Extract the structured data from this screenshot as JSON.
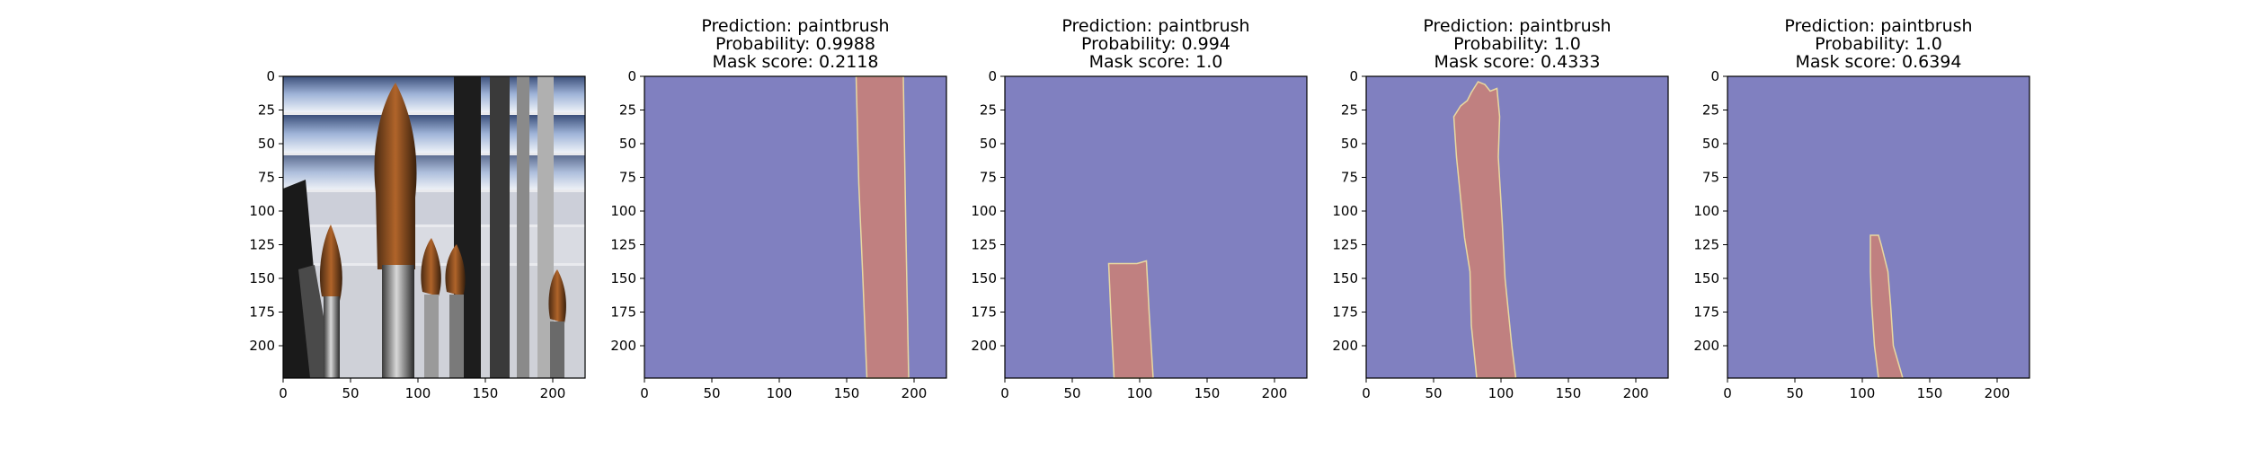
{
  "figure": {
    "background": "#ffffff",
    "mask_background_color": "#8080c0",
    "mask_foreground_color": "#c08080",
    "mask_edge_color": "#e8d8a0"
  },
  "chart_data": [
    {
      "type": "image",
      "panel": "input-photo",
      "content": "paintbrushes photo",
      "xlim": [
        0,
        224
      ],
      "ylim": [
        224,
        0
      ],
      "xticks": [
        0,
        50,
        100,
        150,
        200
      ],
      "yticks": [
        0,
        25,
        50,
        75,
        100,
        125,
        150,
        175,
        200
      ],
      "title_lines": []
    },
    {
      "type": "heatmap",
      "panel": "mask-1",
      "title_lines": [
        "Prediction: paintbrush",
        "Probability: 0.9988",
        "Mask score: 0.2118"
      ],
      "xlim": [
        0,
        224
      ],
      "ylim": [
        224,
        0
      ],
      "xticks": [
        0,
        50,
        100,
        150,
        200
      ],
      "yticks": [
        0,
        25,
        50,
        75,
        100,
        125,
        150,
        175,
        200
      ],
      "mask_polygon": [
        [
          157,
          0
        ],
        [
          192,
          0
        ],
        [
          193,
          60
        ],
        [
          194,
          120
        ],
        [
          196,
          224
        ],
        [
          165,
          224
        ],
        [
          162,
          150
        ],
        [
          159,
          80
        ]
      ]
    },
    {
      "type": "heatmap",
      "panel": "mask-2",
      "title_lines": [
        "Prediction: paintbrush",
        "Probability: 0.994",
        "Mask score: 1.0"
      ],
      "xlim": [
        0,
        224
      ],
      "ylim": [
        224,
        0
      ],
      "xticks": [
        0,
        50,
        100,
        150,
        200
      ],
      "yticks": [
        0,
        25,
        50,
        75,
        100,
        125,
        150,
        175,
        200
      ],
      "mask_polygon": [
        [
          77,
          139
        ],
        [
          98,
          139
        ],
        [
          105,
          137
        ],
        [
          107,
          175
        ],
        [
          110,
          224
        ],
        [
          81,
          224
        ],
        [
          79,
          185
        ]
      ]
    },
    {
      "type": "heatmap",
      "panel": "mask-3",
      "title_lines": [
        "Prediction: paintbrush",
        "Probability: 1.0",
        "Mask score: 0.4333"
      ],
      "xlim": [
        0,
        224
      ],
      "ylim": [
        224,
        0
      ],
      "xticks": [
        0,
        50,
        100,
        150,
        200
      ],
      "yticks": [
        0,
        25,
        50,
        75,
        100,
        125,
        150,
        175,
        200
      ],
      "mask_polygon": [
        [
          78,
          12
        ],
        [
          83,
          4
        ],
        [
          88,
          6
        ],
        [
          92,
          11
        ],
        [
          97,
          9
        ],
        [
          99,
          30
        ],
        [
          98,
          60
        ],
        [
          101,
          110
        ],
        [
          103,
          150
        ],
        [
          108,
          200
        ],
        [
          111,
          224
        ],
        [
          82,
          224
        ],
        [
          78,
          185
        ],
        [
          77,
          145
        ],
        [
          73,
          120
        ],
        [
          70,
          90
        ],
        [
          67,
          60
        ],
        [
          65,
          30
        ],
        [
          70,
          22
        ],
        [
          75,
          18
        ]
      ]
    },
    {
      "type": "heatmap",
      "panel": "mask-4",
      "title_lines": [
        "Prediction: paintbrush",
        "Probability: 1.0",
        "Mask score: 0.6394"
      ],
      "xlim": [
        0,
        224
      ],
      "ylim": [
        224,
        0
      ],
      "xticks": [
        0,
        50,
        100,
        150,
        200
      ],
      "yticks": [
        0,
        25,
        50,
        75,
        100,
        125,
        150,
        175,
        200
      ],
      "mask_polygon": [
        [
          106,
          118
        ],
        [
          112,
          118
        ],
        [
          114,
          125
        ],
        [
          119,
          145
        ],
        [
          121,
          170
        ],
        [
          123,
          200
        ],
        [
          130,
          224
        ],
        [
          112,
          224
        ],
        [
          109,
          200
        ],
        [
          107,
          170
        ],
        [
          106,
          145
        ]
      ]
    }
  ]
}
